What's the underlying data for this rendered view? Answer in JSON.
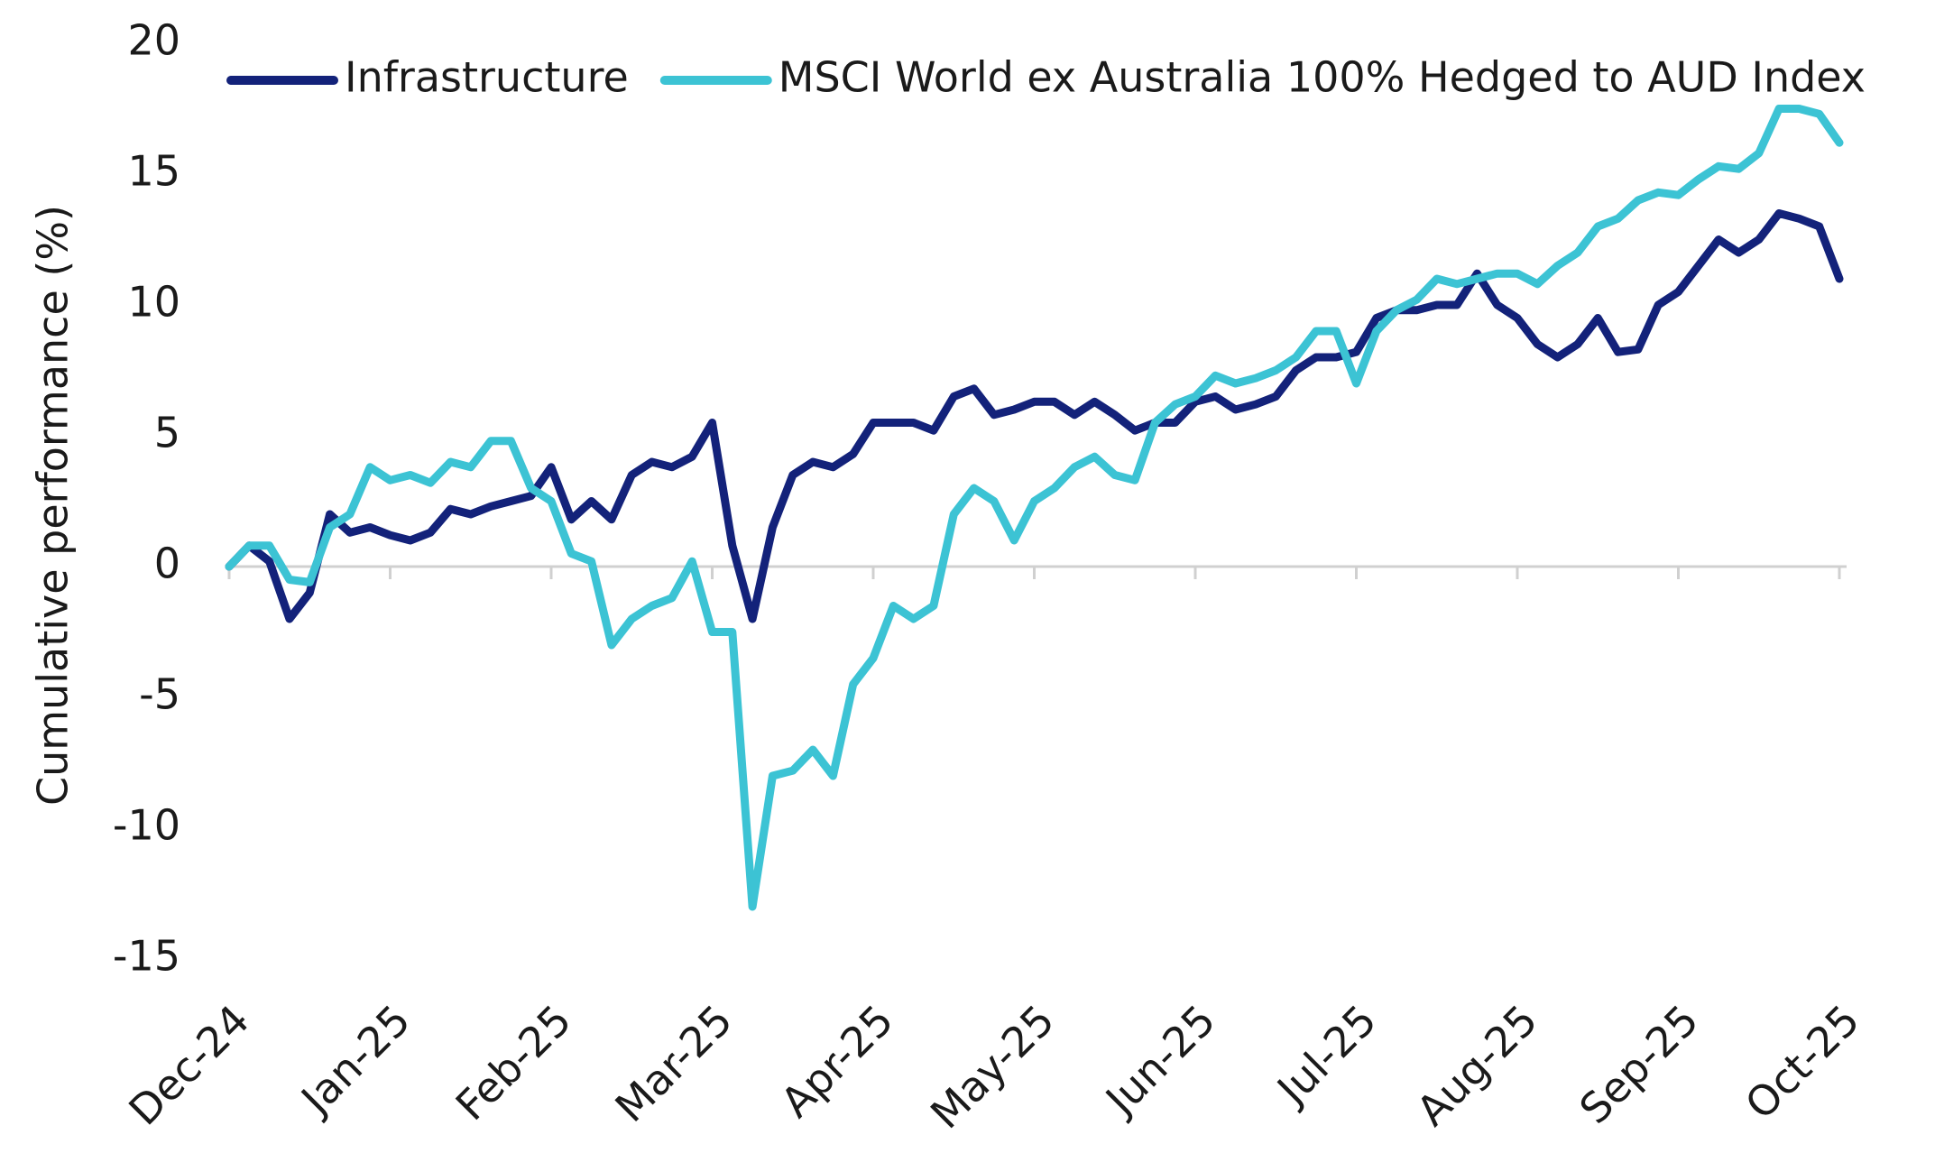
{
  "chart_data": {
    "type": "line",
    "y_label": "Cumulative performance (%)",
    "legend": "top",
    "categories": [
      "Dec-24",
      null,
      null,
      null,
      null,
      null,
      null,
      null,
      "Jan-25",
      null,
      null,
      null,
      null,
      null,
      null,
      null,
      "Feb-25",
      null,
      null,
      null,
      null,
      null,
      null,
      null,
      "Mar-25",
      null,
      null,
      null,
      null,
      null,
      null,
      null,
      "Apr-25",
      null,
      null,
      null,
      null,
      null,
      null,
      null,
      "May-25",
      null,
      null,
      null,
      null,
      null,
      null,
      null,
      "Jun-25",
      null,
      null,
      null,
      null,
      null,
      null,
      null,
      "Jul-25",
      null,
      null,
      null,
      null,
      null,
      null,
      null,
      "Aug-25",
      null,
      null,
      null,
      null,
      null,
      null,
      null,
      "Sep-25",
      null,
      null,
      null,
      null,
      null,
      null,
      null,
      "Oct-25"
    ],
    "series": [
      {
        "name": "Infrastructure",
        "color": "#13227a",
        "values": [
          0,
          0.8,
          0.2,
          -2.0,
          -1.0,
          2.0,
          1.3,
          1.5,
          1.2,
          1.0,
          1.3,
          2.2,
          2.0,
          2.3,
          2.5,
          2.7,
          3.8,
          1.8,
          2.5,
          1.8,
          3.5,
          4.0,
          3.8,
          4.2,
          5.5,
          0.8,
          -2.0,
          1.5,
          3.5,
          4.0,
          3.8,
          4.3,
          5.5,
          5.5,
          5.5,
          5.2,
          6.5,
          6.8,
          5.8,
          6.0,
          6.3,
          6.3,
          5.8,
          6.3,
          5.8,
          5.2,
          5.5,
          5.5,
          6.3,
          6.5,
          6.0,
          6.2,
          6.5,
          7.5,
          8.0,
          8.0,
          8.2,
          9.5,
          9.8,
          9.8,
          10.0,
          10.0,
          11.2,
          10.0,
          9.5,
          8.5,
          8.0,
          8.5,
          9.5,
          8.2,
          8.3,
          10.0,
          10.5,
          11.5,
          12.5,
          12.0,
          12.5,
          13.5,
          13.3,
          13.0,
          11.0
        ]
      },
      {
        "name": "MSCI World ex Australia 100% Hedged to AUD Index",
        "color": "#3cc3d4",
        "values": [
          0,
          0.8,
          0.8,
          -0.5,
          -0.6,
          1.5,
          2.0,
          3.8,
          3.3,
          3.5,
          3.2,
          4.0,
          3.8,
          4.8,
          4.8,
          3.0,
          2.5,
          0.5,
          0.2,
          -3.0,
          -2.0,
          -1.5,
          -1.2,
          0.2,
          -2.5,
          -2.5,
          -13.0,
          -8.0,
          -7.8,
          -7.0,
          -8.0,
          -4.5,
          -3.5,
          -1.5,
          -2.0,
          -1.5,
          2.0,
          3.0,
          2.5,
          1.0,
          2.5,
          3.0,
          3.8,
          4.2,
          3.5,
          3.3,
          5.5,
          6.2,
          6.5,
          7.3,
          7.0,
          7.2,
          7.5,
          8.0,
          9.0,
          9.0,
          7.0,
          9.0,
          9.8,
          10.2,
          11.0,
          10.8,
          11.0,
          11.2,
          11.2,
          10.8,
          11.5,
          12.0,
          13.0,
          13.3,
          14.0,
          14.3,
          14.2,
          14.8,
          15.3,
          15.2,
          15.8,
          17.5,
          17.5,
          17.3,
          16.2
        ]
      }
    ],
    "ylim": [
      -15,
      20
    ],
    "yticks": [
      -15,
      -10,
      -5,
      0,
      5,
      10,
      15,
      20
    ],
    "grid": false
  }
}
